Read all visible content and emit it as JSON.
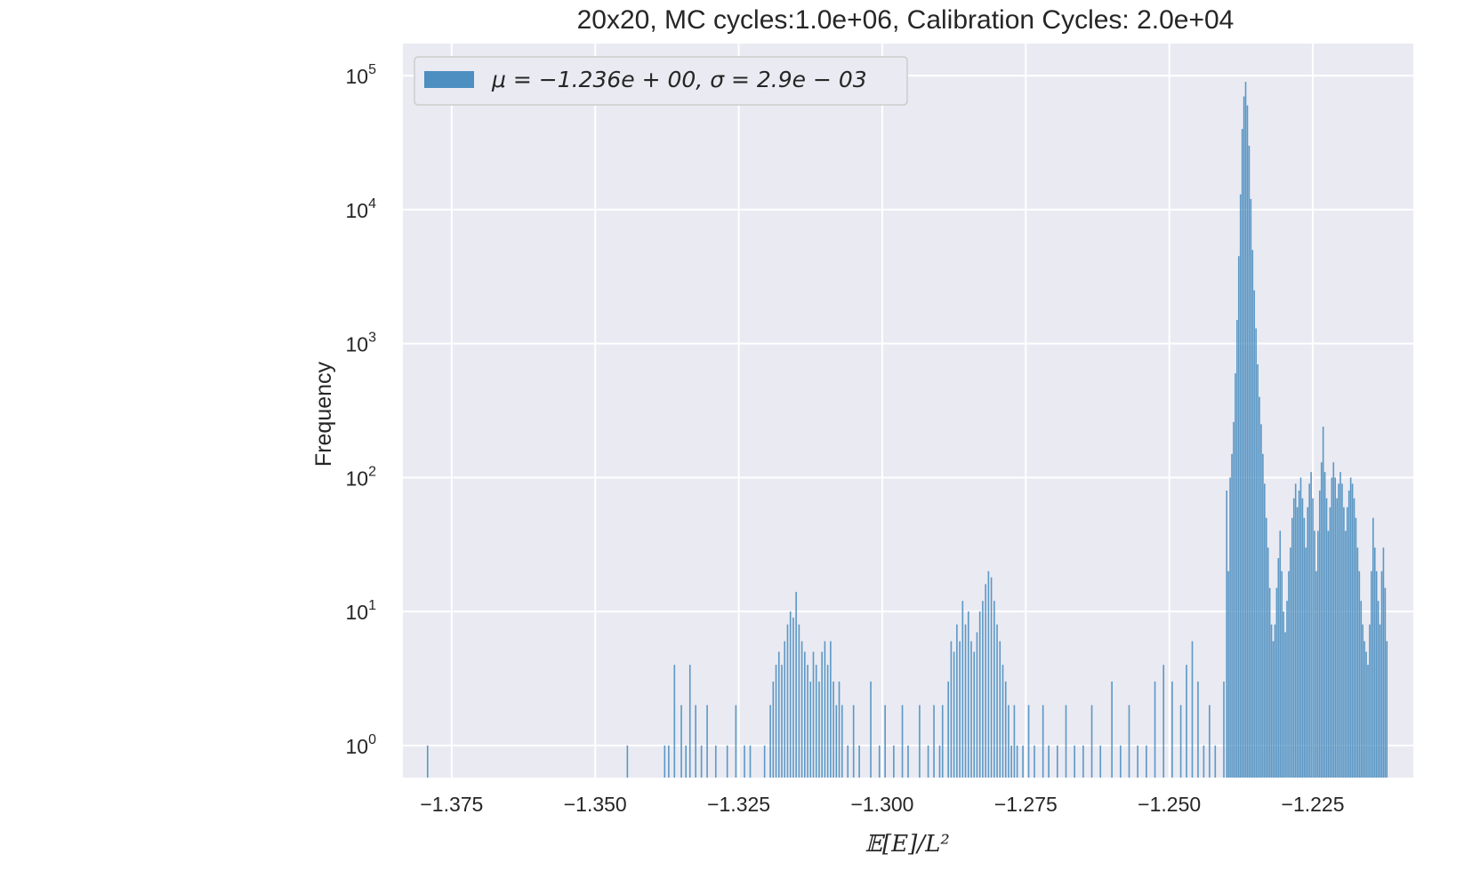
{
  "chart_data": {
    "type": "bar",
    "title": "20x20, MC cycles:1.0e+06, Calibration Cycles: 2.0e+04",
    "xlabel": "𝔼[E]/L²",
    "ylabel": "Frequency",
    "xlim": [
      -1.3835,
      -1.2075
    ],
    "ylim_log10": [
      -0.24,
      5.24
    ],
    "yscale": "log",
    "grid": true,
    "x_ticks": [
      {
        "value": -1.375,
        "label": "−1.375"
      },
      {
        "value": -1.35,
        "label": "−1.350"
      },
      {
        "value": -1.325,
        "label": "−1.325"
      },
      {
        "value": -1.3,
        "label": "−1.300"
      },
      {
        "value": -1.275,
        "label": "−1.275"
      },
      {
        "value": -1.25,
        "label": "−1.250"
      },
      {
        "value": -1.225,
        "label": "−1.225"
      }
    ],
    "y_ticks": [
      {
        "value": 0,
        "base": "10",
        "exp": "0"
      },
      {
        "value": 1,
        "base": "10",
        "exp": "1"
      },
      {
        "value": 2,
        "base": "10",
        "exp": "2"
      },
      {
        "value": 3,
        "base": "10",
        "exp": "3"
      },
      {
        "value": 4,
        "base": "10",
        "exp": "4"
      },
      {
        "value": 5,
        "base": "10",
        "exp": "5"
      }
    ],
    "legend": {
      "position": "top-left",
      "label": "μ = −1.236e + 00, σ = 2.9e − 03"
    },
    "series": [
      {
        "name": "μ = −1.236e + 00, σ = 2.9e − 03",
        "color": "#4c8fc0",
        "bin_width": 0.00025,
        "bins": [
          [
            -1.3792,
            1
          ],
          [
            -1.3444,
            1
          ],
          [
            -1.3379,
            1
          ],
          [
            -1.3372,
            1
          ],
          [
            -1.3362,
            4
          ],
          [
            -1.335,
            2
          ],
          [
            -1.3342,
            1
          ],
          [
            -1.3335,
            4
          ],
          [
            -1.3325,
            2
          ],
          [
            -1.3315,
            1
          ],
          [
            -1.3305,
            2
          ],
          [
            -1.329,
            1
          ],
          [
            -1.327,
            1
          ],
          [
            -1.3255,
            2
          ],
          [
            -1.324,
            1
          ],
          [
            -1.323,
            1
          ],
          [
            -1.3205,
            1
          ],
          [
            -1.3195,
            2
          ],
          [
            -1.319,
            3
          ],
          [
            -1.3185,
            4
          ],
          [
            -1.318,
            5
          ],
          [
            -1.3175,
            4
          ],
          [
            -1.317,
            6
          ],
          [
            -1.3165,
            8
          ],
          [
            -1.316,
            10
          ],
          [
            -1.3155,
            9
          ],
          [
            -1.315,
            14
          ],
          [
            -1.3145,
            8
          ],
          [
            -1.314,
            6
          ],
          [
            -1.3135,
            5
          ],
          [
            -1.313,
            4
          ],
          [
            -1.3125,
            3
          ],
          [
            -1.312,
            5
          ],
          [
            -1.3115,
            4
          ],
          [
            -1.311,
            3
          ],
          [
            -1.3105,
            5
          ],
          [
            -1.31,
            6
          ],
          [
            -1.3095,
            4
          ],
          [
            -1.309,
            6
          ],
          [
            -1.3085,
            3
          ],
          [
            -1.308,
            2
          ],
          [
            -1.3075,
            3
          ],
          [
            -1.307,
            2
          ],
          [
            -1.306,
            1
          ],
          [
            -1.305,
            2
          ],
          [
            -1.304,
            1
          ],
          [
            -1.302,
            3
          ],
          [
            -1.3005,
            1
          ],
          [
            -1.2995,
            2
          ],
          [
            -1.298,
            1
          ],
          [
            -1.2965,
            2
          ],
          [
            -1.2955,
            1
          ],
          [
            -1.2935,
            2
          ],
          [
            -1.292,
            1
          ],
          [
            -1.291,
            2
          ],
          [
            -1.29,
            1
          ],
          [
            -1.2895,
            2
          ],
          [
            -1.2885,
            3
          ],
          [
            -1.288,
            6
          ],
          [
            -1.2875,
            5
          ],
          [
            -1.287,
            8
          ],
          [
            -1.2865,
            6
          ],
          [
            -1.286,
            12
          ],
          [
            -1.2855,
            8
          ],
          [
            -1.285,
            10
          ],
          [
            -1.2845,
            6
          ],
          [
            -1.284,
            5
          ],
          [
            -1.2835,
            7
          ],
          [
            -1.283,
            10
          ],
          [
            -1.2825,
            12
          ],
          [
            -1.282,
            16
          ],
          [
            -1.2815,
            20
          ],
          [
            -1.281,
            18
          ],
          [
            -1.2805,
            12
          ],
          [
            -1.28,
            8
          ],
          [
            -1.2795,
            6
          ],
          [
            -1.279,
            4
          ],
          [
            -1.2785,
            3
          ],
          [
            -1.278,
            2
          ],
          [
            -1.2775,
            1
          ],
          [
            -1.277,
            2
          ],
          [
            -1.2765,
            1
          ],
          [
            -1.2755,
            1
          ],
          [
            -1.2745,
            2
          ],
          [
            -1.2735,
            1
          ],
          [
            -1.272,
            2
          ],
          [
            -1.271,
            1
          ],
          [
            -1.2695,
            1
          ],
          [
            -1.268,
            2
          ],
          [
            -1.2665,
            1
          ],
          [
            -1.265,
            1
          ],
          [
            -1.2635,
            2
          ],
          [
            -1.262,
            1
          ],
          [
            -1.26,
            3
          ],
          [
            -1.2585,
            1
          ],
          [
            -1.257,
            2
          ],
          [
            -1.2555,
            1
          ],
          [
            -1.254,
            1
          ],
          [
            -1.2525,
            3
          ],
          [
            -1.251,
            4
          ],
          [
            -1.2495,
            3
          ],
          [
            -1.248,
            2
          ],
          [
            -1.247,
            4
          ],
          [
            -1.246,
            6
          ],
          [
            -1.245,
            3
          ],
          [
            -1.244,
            1
          ],
          [
            -1.243,
            2
          ],
          [
            -1.242,
            1
          ],
          [
            -1.2405,
            3
          ],
          [
            -1.24,
            80
          ],
          [
            -1.2397,
            20
          ],
          [
            -1.2394,
            100
          ],
          [
            -1.2391,
            150
          ],
          [
            -1.2388,
            260
          ],
          [
            -1.2385,
            600
          ],
          [
            -1.2382,
            1500
          ],
          [
            -1.2379,
            4500
          ],
          [
            -1.2376,
            13000
          ],
          [
            -1.2373,
            40000
          ],
          [
            -1.237,
            70000
          ],
          [
            -1.2367,
            90000
          ],
          [
            -1.2364,
            60000
          ],
          [
            -1.2361,
            30000
          ],
          [
            -1.2358,
            12000
          ],
          [
            -1.2355,
            5000
          ],
          [
            -1.2352,
            2500
          ],
          [
            -1.2349,
            1300
          ],
          [
            -1.2346,
            700
          ],
          [
            -1.2343,
            400
          ],
          [
            -1.234,
            250
          ],
          [
            -1.2337,
            150
          ],
          [
            -1.2334,
            90
          ],
          [
            -1.2331,
            50
          ],
          [
            -1.2328,
            30
          ],
          [
            -1.2325,
            15
          ],
          [
            -1.2322,
            8
          ],
          [
            -1.2319,
            6
          ],
          [
            -1.2316,
            8
          ],
          [
            -1.2313,
            15
          ],
          [
            -1.231,
            25
          ],
          [
            -1.2307,
            40
          ],
          [
            -1.2304,
            20
          ],
          [
            -1.2301,
            10
          ],
          [
            -1.2298,
            7
          ],
          [
            -1.2295,
            12
          ],
          [
            -1.2292,
            20
          ],
          [
            -1.2289,
            30
          ],
          [
            -1.2286,
            50
          ],
          [
            -1.2283,
            70
          ],
          [
            -1.228,
            90
          ],
          [
            -1.2277,
            60
          ],
          [
            -1.2274,
            80
          ],
          [
            -1.2271,
            100
          ],
          [
            -1.2268,
            70
          ],
          [
            -1.2265,
            50
          ],
          [
            -1.2262,
            30
          ],
          [
            -1.2259,
            60
          ],
          [
            -1.2256,
            90
          ],
          [
            -1.2253,
            110
          ],
          [
            -1.225,
            70
          ],
          [
            -1.2247,
            40
          ],
          [
            -1.2244,
            20
          ],
          [
            -1.2241,
            40
          ],
          [
            -1.2238,
            80
          ],
          [
            -1.2235,
            130
          ],
          [
            -1.2232,
            240
          ],
          [
            -1.2229,
            110
          ],
          [
            -1.2226,
            70
          ],
          [
            -1.2223,
            40
          ],
          [
            -1.222,
            60
          ],
          [
            -1.2217,
            100
          ],
          [
            -1.2214,
            130
          ],
          [
            -1.2211,
            100
          ],
          [
            -1.2208,
            70
          ],
          [
            -1.2205,
            90
          ],
          [
            -1.2202,
            110
          ],
          [
            -1.2199,
            90
          ],
          [
            -1.2196,
            60
          ],
          [
            -1.2193,
            40
          ],
          [
            -1.219,
            60
          ],
          [
            -1.2187,
            80
          ],
          [
            -1.2184,
            100
          ],
          [
            -1.2181,
            90
          ],
          [
            -1.2178,
            70
          ],
          [
            -1.2175,
            50
          ],
          [
            -1.2172,
            30
          ],
          [
            -1.2169,
            20
          ],
          [
            -1.2166,
            12
          ],
          [
            -1.2163,
            8
          ],
          [
            -1.216,
            6
          ],
          [
            -1.2157,
            5
          ],
          [
            -1.2154,
            4
          ],
          [
            -1.2151,
            8
          ],
          [
            -1.2148,
            20
          ],
          [
            -1.2145,
            50
          ],
          [
            -1.2142,
            30
          ],
          [
            -1.2139,
            20
          ],
          [
            -1.2136,
            12
          ],
          [
            -1.2133,
            8
          ],
          [
            -1.213,
            20
          ],
          [
            -1.2127,
            30
          ],
          [
            -1.2124,
            15
          ],
          [
            -1.2121,
            6
          ]
        ]
      }
    ]
  }
}
